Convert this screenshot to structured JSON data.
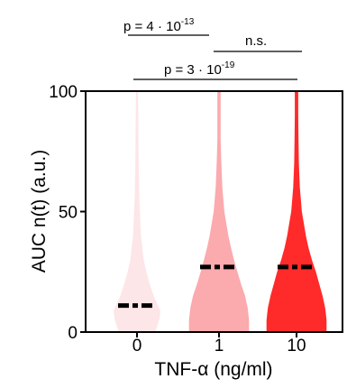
{
  "chart_data": {
    "type": "violin",
    "xlabel": "TNF-α (ng/ml)",
    "ylabel": "AUC n(t)  (a.u.)",
    "ylim": [
      0,
      100
    ],
    "yticks": [
      0,
      50,
      100
    ],
    "categories": [
      "0",
      "1",
      "10"
    ],
    "medians": [
      11,
      27,
      27
    ],
    "colors": [
      "#fde6e8",
      "#fbaaae",
      "#ff2a2a"
    ],
    "violins": [
      {
        "category": "0",
        "max": 100,
        "profile": [
          [
            0,
            0.55
          ],
          [
            3,
            0.62
          ],
          [
            6,
            0.68
          ],
          [
            9,
            0.7
          ],
          [
            12,
            0.6
          ],
          [
            15,
            0.5
          ],
          [
            20,
            0.38
          ],
          [
            25,
            0.28
          ],
          [
            30,
            0.2
          ],
          [
            40,
            0.12
          ],
          [
            55,
            0.07
          ],
          [
            70,
            0.05
          ],
          [
            85,
            0.04
          ],
          [
            100,
            0.03
          ]
        ]
      },
      {
        "category": "1",
        "max": 100,
        "profile": [
          [
            0,
            0.9
          ],
          [
            5,
            0.9
          ],
          [
            10,
            0.86
          ],
          [
            15,
            0.78
          ],
          [
            20,
            0.66
          ],
          [
            25,
            0.55
          ],
          [
            30,
            0.45
          ],
          [
            35,
            0.36
          ],
          [
            40,
            0.28
          ],
          [
            50,
            0.16
          ],
          [
            60,
            0.1
          ],
          [
            70,
            0.07
          ],
          [
            80,
            0.05
          ],
          [
            90,
            0.05
          ],
          [
            100,
            0.05
          ]
        ]
      },
      {
        "category": "10",
        "max": 100,
        "profile": [
          [
            0,
            0.9
          ],
          [
            5,
            0.9
          ],
          [
            10,
            0.86
          ],
          [
            15,
            0.78
          ],
          [
            20,
            0.68
          ],
          [
            25,
            0.58
          ],
          [
            30,
            0.46
          ],
          [
            35,
            0.36
          ],
          [
            40,
            0.28
          ],
          [
            50,
            0.16
          ],
          [
            60,
            0.1
          ],
          [
            70,
            0.07
          ],
          [
            80,
            0.06
          ],
          [
            90,
            0.05
          ],
          [
            100,
            0.05
          ]
        ]
      }
    ],
    "annotations": [
      {
        "text_main": "p = 4 · 10",
        "text_exp": "-13",
        "from": 0,
        "to": 0.5
      },
      {
        "text_main": "n.s.",
        "text_exp": "",
        "from": 1,
        "to": 2
      },
      {
        "text_main": "p = 3 · 10",
        "text_exp": "-19",
        "from": 0,
        "to": 2
      }
    ]
  }
}
